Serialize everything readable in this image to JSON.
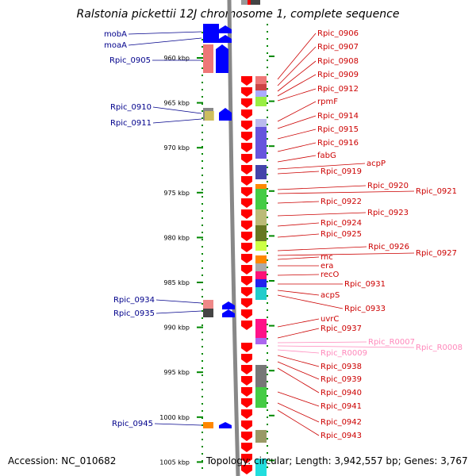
{
  "header": {
    "title": "Ralstonia pickettii 12J chromosome 1, complete sequence"
  },
  "footer": {
    "accession": "Accession: NC_010682",
    "topology": "Topology: circular; Length: 3,942,557 bp; Genes: 3,767"
  },
  "colors": {
    "minus_strand_label": "#00008b",
    "plus_strand_label": "#cc0000",
    "rna_label": "#ff88bb",
    "minus_gene": "#0000ff",
    "plus_gene": "#ff0000",
    "ruler_dots": "#008800",
    "backbone": "#888888"
  },
  "ruler": {
    "ticks": [
      "960 kbp",
      "965 kbp",
      "970 kbp",
      "975 kbp",
      "980 kbp",
      "985 kbp",
      "990 kbp",
      "995 kbp",
      "1000 kbp",
      "1005 kbp"
    ]
  },
  "left_labels": [
    "mobA",
    "moaA",
    "Rpic_0905",
    "Rpic_0910",
    "Rpic_0911",
    "Rpic_0934",
    "Rpic_0935",
    "Rpic_0945"
  ],
  "right_labels": [
    "Rpic_0906",
    "Rpic_0907",
    "Rpic_0908",
    "Rpic_0909",
    "Rpic_0912",
    "rpmF",
    "Rpic_0914",
    "Rpic_0915",
    "Rpic_0916",
    "fabG",
    "acpP",
    "Rpic_0919",
    "Rpic_0920",
    "Rpic_0921",
    "Rpic_0922",
    "Rpic_0923",
    "Rpic_0924",
    "Rpic_0925",
    "Rpic_0926",
    "Rpic_0927",
    "rnc",
    "era",
    "recO",
    "Rpic_0931",
    "acpS",
    "Rpic_0933",
    "uvrC",
    "Rpic_0937",
    "Rpic_R0007",
    "Rpic_R0008",
    "Rpic_R0009",
    "Rpic_0938",
    "Rpic_0939",
    "Rpic_0940",
    "Rpic_0941",
    "Rpic_0942",
    "Rpic_0943"
  ]
}
